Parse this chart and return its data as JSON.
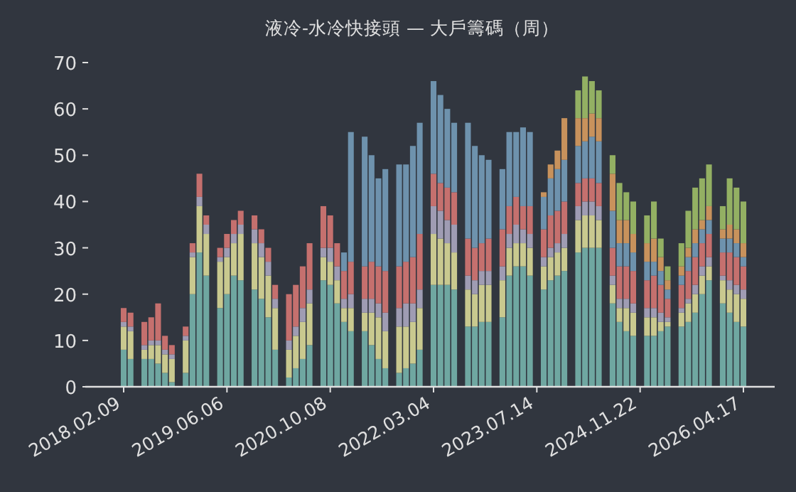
{
  "chart_data": {
    "type": "bar",
    "stacked": true,
    "title": "液冷-水冷快接頭 — 大戶籌碼（周）",
    "categories": [
      "2018.02.09",
      null,
      null,
      null,
      null,
      null,
      null,
      null,
      null,
      null,
      null,
      null,
      null,
      null,
      null,
      "2019.06.06",
      null,
      null,
      null,
      null,
      null,
      null,
      null,
      null,
      null,
      null,
      null,
      null,
      null,
      null,
      "2020.10.08",
      null,
      null,
      null,
      null,
      null,
      null,
      null,
      null,
      null,
      null,
      null,
      null,
      null,
      null,
      "2022.03.04",
      null,
      null,
      null,
      null,
      null,
      null,
      null,
      null,
      null,
      null,
      null,
      null,
      null,
      null,
      "2023.07.14",
      null,
      null,
      null,
      null,
      null,
      null,
      null,
      null,
      null,
      null,
      null,
      null,
      null,
      null,
      "2024.11.22",
      null,
      null,
      null,
      null,
      null,
      null,
      null,
      null,
      null,
      null,
      null,
      null,
      null,
      null,
      "2026.04.17"
    ],
    "ylim": [
      0,
      70
    ],
    "yticks": [
      0,
      10,
      20,
      30,
      40,
      50,
      60,
      70
    ],
    "series": [
      {
        "color": "#6fa7a1",
        "values": [
          8,
          6,
          null,
          6,
          6,
          5,
          3,
          1,
          null,
          3,
          20,
          29,
          24,
          null,
          17,
          20,
          24,
          23,
          null,
          21,
          19,
          15,
          8,
          null,
          2,
          4,
          6,
          9,
          null,
          23,
          22,
          18,
          14,
          12,
          null,
          12,
          9,
          6,
          4,
          null,
          3,
          4,
          5,
          8,
          null,
          22,
          22,
          22,
          21,
          null,
          13,
          13,
          14,
          14,
          null,
          15,
          24,
          26,
          26,
          24,
          null,
          21,
          23,
          24,
          25,
          null,
          29,
          30,
          30,
          30,
          null,
          18,
          14,
          12,
          11,
          null,
          11,
          11,
          12,
          13,
          null,
          13,
          14,
          16,
          20,
          23,
          null,
          18,
          16,
          14,
          13
        ]
      },
      {
        "color": "#c9c98f",
        "values": [
          5,
          6,
          null,
          2,
          3,
          4,
          4,
          5,
          null,
          7,
          8,
          10,
          9,
          null,
          10,
          8,
          7,
          10,
          null,
          10,
          9,
          9,
          9,
          null,
          6,
          7,
          8,
          9,
          null,
          5,
          5,
          5,
          3,
          5,
          null,
          4,
          7,
          9,
          8,
          null,
          10,
          9,
          9,
          9,
          null,
          11,
          10,
          9,
          8,
          null,
          8,
          7,
          8,
          8,
          null,
          8,
          6,
          5,
          5,
          6,
          null,
          5,
          5,
          5,
          5,
          null,
          7,
          7,
          7,
          6,
          null,
          4,
          3,
          5,
          5,
          null,
          4,
          4,
          2,
          1,
          null,
          3,
          4,
          4,
          4,
          3,
          null,
          5,
          5,
          6,
          6
        ]
      },
      {
        "color": "#9f9cb3",
        "values": [
          1,
          1,
          null,
          1,
          1,
          1,
          1,
          1,
          null,
          1,
          1,
          2,
          2,
          null,
          1,
          2,
          2,
          2,
          null,
          3,
          3,
          3,
          2,
          null,
          2,
          2,
          3,
          3,
          null,
          2,
          3,
          3,
          2,
          3,
          null,
          3,
          3,
          3,
          4,
          null,
          4,
          5,
          4,
          4,
          null,
          6,
          6,
          5,
          6,
          null,
          3,
          3,
          3,
          3,
          null,
          3,
          3,
          4,
          3,
          3,
          null,
          2,
          2,
          2,
          3,
          null,
          3,
          3,
          3,
          3,
          null,
          2,
          2,
          2,
          2,
          null,
          2,
          2,
          2,
          1,
          null,
          1,
          1,
          2,
          2,
          2,
          null,
          1,
          2,
          2,
          2
        ]
      },
      {
        "color": "#c5706e",
        "values": [
          3,
          3,
          null,
          5,
          5,
          8,
          3,
          2,
          null,
          2,
          2,
          5,
          2,
          null,
          2,
          3,
          3,
          3,
          null,
          3,
          3,
          3,
          3,
          null,
          10,
          9,
          9,
          10,
          null,
          9,
          7,
          5,
          6,
          7,
          null,
          7,
          8,
          8,
          9,
          null,
          9,
          9,
          10,
          12,
          null,
          7,
          6,
          7,
          7,
          null,
          8,
          7,
          6,
          7,
          null,
          8,
          6,
          6,
          5,
          6,
          null,
          6,
          7,
          7,
          7,
          null,
          5,
          5,
          5,
          5,
          null,
          6,
          7,
          7,
          7,
          null,
          6,
          7,
          6,
          4,
          null,
          5,
          6,
          6,
          5,
          5,
          null,
          5,
          6,
          6,
          5
        ]
      },
      {
        "color": "#6e92ad",
        "values": [
          0,
          0,
          null,
          0,
          0,
          0,
          0,
          0,
          null,
          0,
          0,
          0,
          0,
          null,
          0,
          0,
          0,
          0,
          null,
          0,
          0,
          0,
          0,
          null,
          0,
          0,
          0,
          0,
          null,
          0,
          0,
          0,
          4,
          28,
          null,
          28,
          23,
          19,
          22,
          null,
          22,
          21,
          24,
          24,
          null,
          20,
          19,
          17,
          15,
          null,
          25,
          22,
          19,
          17,
          null,
          13,
          16,
          14,
          17,
          16,
          null,
          7,
          8,
          9,
          9,
          null,
          8,
          8,
          9,
          9,
          null,
          8,
          5,
          5,
          4,
          null,
          4,
          3,
          3,
          2,
          null,
          2,
          3,
          3,
          3,
          3,
          null,
          3,
          3,
          3,
          2
        ]
      },
      {
        "color": "#c8925c",
        "values": [
          0,
          0,
          null,
          0,
          0,
          0,
          0,
          0,
          null,
          0,
          0,
          0,
          0,
          null,
          0,
          0,
          0,
          0,
          null,
          0,
          0,
          0,
          0,
          null,
          0,
          0,
          0,
          0,
          null,
          0,
          0,
          0,
          0,
          0,
          null,
          0,
          0,
          0,
          0,
          null,
          0,
          0,
          0,
          0,
          null,
          0,
          0,
          0,
          0,
          null,
          0,
          0,
          0,
          0,
          null,
          0,
          0,
          0,
          0,
          0,
          null,
          1,
          3,
          4,
          9,
          null,
          6,
          5,
          5,
          5,
          null,
          8,
          5,
          5,
          4,
          null,
          4,
          5,
          3,
          2,
          null,
          2,
          2,
          3,
          2,
          3,
          null,
          2,
          3,
          3,
          3
        ]
      },
      {
        "color": "#93b063",
        "values": [
          0,
          0,
          null,
          0,
          0,
          0,
          0,
          0,
          null,
          0,
          0,
          0,
          0,
          null,
          0,
          0,
          0,
          0,
          null,
          0,
          0,
          0,
          0,
          null,
          0,
          0,
          0,
          0,
          null,
          0,
          0,
          0,
          0,
          0,
          null,
          0,
          0,
          0,
          0,
          null,
          0,
          0,
          0,
          0,
          null,
          0,
          0,
          0,
          0,
          null,
          0,
          0,
          0,
          0,
          null,
          0,
          0,
          0,
          0,
          0,
          null,
          0,
          0,
          0,
          0,
          null,
          6,
          9,
          7,
          6,
          null,
          4,
          8,
          6,
          7,
          null,
          6,
          8,
          4,
          3,
          null,
          5,
          8,
          9,
          9,
          9,
          null,
          5,
          10,
          9,
          9
        ]
      }
    ]
  }
}
